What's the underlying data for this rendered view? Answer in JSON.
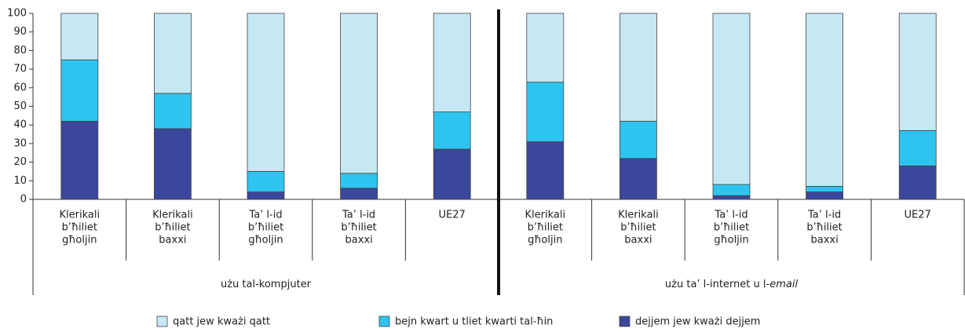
{
  "chart_data": {
    "type": "stacked_bar",
    "ylim": [
      0,
      100
    ],
    "yticks": [
      0,
      10,
      20,
      30,
      40,
      50,
      60,
      70,
      80,
      90,
      100
    ],
    "groups": [
      {
        "label": "użu tal-kompjuter",
        "categories": [
          [
            "Klerikali",
            "b’ħiliet",
            "għoljin"
          ],
          [
            "Klerikali",
            "b’ħiliet",
            "baxxi"
          ],
          [
            "Ta’ l-id",
            "b’ħiliet",
            "għoljin"
          ],
          [
            "Ta’ l-id",
            "b’ħiliet",
            "baxxi"
          ],
          [
            "UE27"
          ]
        ]
      },
      {
        "label": "użu ta’ l-internet u l-",
        "label_italic": "email",
        "categories": [
          [
            "Klerikali",
            "b’ħiliet",
            "għoljin"
          ],
          [
            "Klerikali",
            "b’ħiliet",
            "baxxi"
          ],
          [
            "Ta’ l-id",
            "b’ħiliet",
            "għoljin"
          ],
          [
            "Ta’ l-id",
            "b’ħiliet",
            "baxxi"
          ],
          [
            "UE27"
          ]
        ]
      }
    ],
    "series": [
      {
        "name": "dejjem jew kważi dejjem",
        "color": "#3a479b",
        "values": [
          [
            42,
            38,
            4,
            6,
            27
          ],
          [
            31,
            22,
            2,
            4,
            18
          ]
        ]
      },
      {
        "name": "bejn kwart u tliet kwarti tal-ħin",
        "color": "#2ec4f0",
        "values": [
          [
            33,
            19,
            11,
            8,
            20
          ],
          [
            32,
            20,
            6,
            3,
            19
          ]
        ]
      },
      {
        "name": "qatt jew kważi qatt",
        "color": "#c6e8f4",
        "values": [
          [
            25,
            43,
            85,
            86,
            53
          ],
          [
            37,
            58,
            92,
            93,
            63
          ]
        ]
      }
    ]
  }
}
